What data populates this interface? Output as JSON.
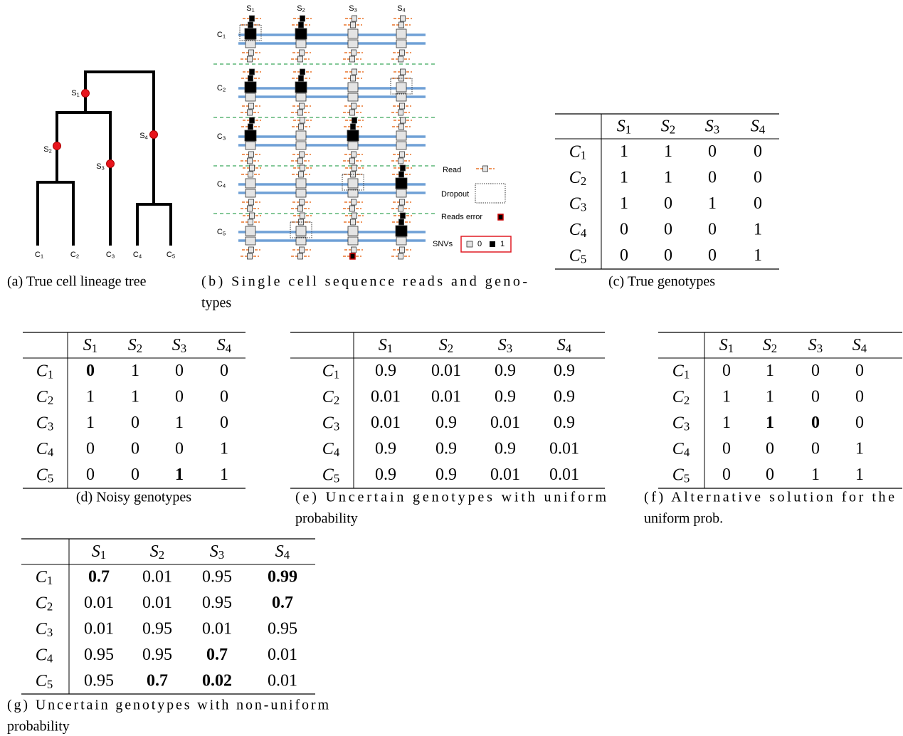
{
  "tree": {
    "internal_labels": [
      "S1",
      "S2",
      "S3",
      "S4"
    ],
    "leaf_labels": [
      "C1",
      "C2",
      "C3",
      "C4",
      "C5"
    ],
    "caption": [
      "(a) True cell lineage tree"
    ]
  },
  "reads": {
    "columns": [
      "S1",
      "S2",
      "S3",
      "S4"
    ],
    "rows": [
      "C1",
      "C2",
      "C3",
      "C4",
      "C5"
    ],
    "legend": {
      "read": "Read",
      "dropout": "Dropout",
      "error": "Reads error",
      "snvs": "SNVs",
      "zero": "0",
      "one": "1"
    },
    "caption": [
      "(b) Single cell sequence reads and geno-",
      "types"
    ]
  },
  "tables": [
    {
      "columns": [
        "S1",
        "S2",
        "S3",
        "S4"
      ],
      "rows": [
        {
          "label": "C1",
          "values": [
            1,
            1,
            0,
            0
          ]
        },
        {
          "label": "C2",
          "values": [
            1,
            1,
            0,
            0
          ]
        },
        {
          "label": "C3",
          "values": [
            1,
            0,
            1,
            0
          ]
        },
        {
          "label": "C4",
          "values": [
            0,
            0,
            0,
            1
          ]
        },
        {
          "label": "C5",
          "values": [
            0,
            0,
            0,
            1
          ]
        }
      ],
      "caption": [
        "(c) True genotypes"
      ]
    },
    {
      "columns": [
        "S1",
        "S2",
        "S3",
        "S4"
      ],
      "rows": [
        {
          "label": "C1",
          "values": [
            0,
            1,
            0,
            0
          ]
        },
        {
          "label": "C2",
          "values": [
            1,
            1,
            0,
            0
          ]
        },
        {
          "label": "C3",
          "values": [
            1,
            0,
            1,
            0
          ]
        },
        {
          "label": "C4",
          "values": [
            0,
            0,
            0,
            1
          ]
        },
        {
          "label": "C5",
          "values": [
            0,
            0,
            1,
            1
          ]
        }
      ],
      "bold": [
        [
          0,
          0
        ],
        [
          4,
          2
        ]
      ],
      "caption": [
        "(d) Noisy genotypes"
      ]
    },
    {
      "columns": [
        "S1",
        "S2",
        "S3",
        "S4"
      ],
      "rows": [
        {
          "label": "C1",
          "values": [
            0.9,
            0.01,
            0.9,
            0.9
          ]
        },
        {
          "label": "C2",
          "values": [
            0.01,
            0.01,
            0.9,
            0.9
          ]
        },
        {
          "label": "C3",
          "values": [
            0.01,
            0.9,
            0.01,
            0.9
          ]
        },
        {
          "label": "C4",
          "values": [
            0.9,
            0.9,
            0.9,
            0.01
          ]
        },
        {
          "label": "C5",
          "values": [
            0.9,
            0.9,
            0.01,
            0.01
          ]
        }
      ],
      "caption": [
        "(e) Uncertain genotypes with uniform",
        "probability"
      ]
    },
    {
      "columns": [
        "S1",
        "S2",
        "S3",
        "S4"
      ],
      "rows": [
        {
          "label": "C1",
          "values": [
            0,
            1,
            0,
            0
          ]
        },
        {
          "label": "C2",
          "values": [
            1,
            1,
            0,
            0
          ]
        },
        {
          "label": "C3",
          "values": [
            1,
            1,
            0,
            0
          ]
        },
        {
          "label": "C4",
          "values": [
            0,
            0,
            0,
            1
          ]
        },
        {
          "label": "C5",
          "values": [
            0,
            0,
            1,
            1
          ]
        }
      ],
      "bold": [
        [
          2,
          1
        ],
        [
          2,
          2
        ]
      ],
      "caption": [
        "(f) Alternative solution for the",
        "uniform prob."
      ]
    },
    {
      "columns": [
        "S1",
        "S2",
        "S3",
        "S4"
      ],
      "rows": [
        {
          "label": "C1",
          "values": [
            0.7,
            0.01,
            0.95,
            0.99
          ]
        },
        {
          "label": "C2",
          "values": [
            0.01,
            0.01,
            0.95,
            0.7
          ]
        },
        {
          "label": "C3",
          "values": [
            0.01,
            0.95,
            0.01,
            0.95
          ]
        },
        {
          "label": "C4",
          "values": [
            0.95,
            0.95,
            0.7,
            0.01
          ]
        },
        {
          "label": "C5",
          "values": [
            0.95,
            0.7,
            0.02,
            0.01
          ]
        }
      ],
      "bold": [
        [
          0,
          0
        ],
        [
          0,
          3
        ],
        [
          1,
          3
        ],
        [
          3,
          2
        ],
        [
          4,
          1
        ],
        [
          4,
          2
        ]
      ],
      "caption": [
        "(g) Uncertain genotypes with non-uniform",
        "probability"
      ]
    }
  ]
}
